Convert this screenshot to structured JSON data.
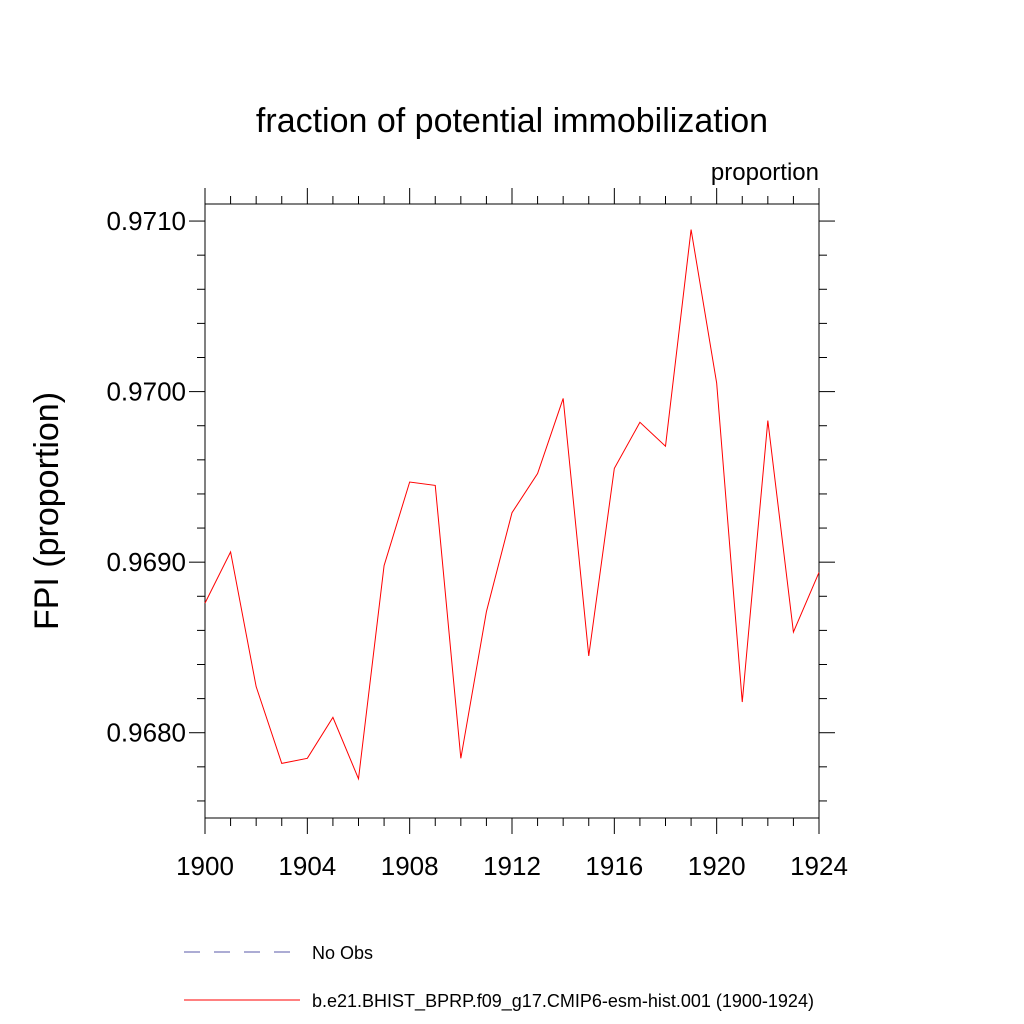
{
  "chart_data": {
    "type": "line",
    "title": "fraction of potential immobilization",
    "units_label": "proportion",
    "xlabel": "",
    "ylabel": "FPI  (proportion)",
    "xlim": [
      1900,
      1924
    ],
    "ylim": [
      0.9675,
      0.9711
    ],
    "x_ticks": [
      1900,
      1904,
      1908,
      1912,
      1916,
      1920,
      1924
    ],
    "y_ticks": [
      0.968,
      0.969,
      0.97,
      0.971
    ],
    "x_tick_labels": [
      "1900",
      "1904",
      "1908",
      "1912",
      "1916",
      "1920",
      "1924"
    ],
    "y_tick_labels": [
      "0.9680",
      "0.9690",
      "0.9700",
      "0.9710"
    ],
    "grid": false,
    "legend_position": "bottom",
    "x": [
      1900,
      1901,
      1902,
      1903,
      1904,
      1905,
      1906,
      1907,
      1908,
      1909,
      1910,
      1911,
      1912,
      1913,
      1914,
      1915,
      1916,
      1917,
      1918,
      1919,
      1920,
      1921,
      1922,
      1923,
      1924
    ],
    "series": [
      {
        "name": "b.e21.BHIST_BPRP.f09_g17.CMIP6-esm-hist.001 (1900-1924)",
        "color": "#ff0000",
        "style": "solid",
        "values": [
          0.96876,
          0.96906,
          0.96827,
          0.96782,
          0.96785,
          0.96809,
          0.96773,
          0.96898,
          0.96947,
          0.96945,
          0.96785,
          0.96871,
          0.96929,
          0.96952,
          0.96996,
          0.96845,
          0.96955,
          0.96982,
          0.96968,
          0.97095,
          0.97005,
          0.96818,
          0.96983,
          0.96859,
          0.96894
        ]
      }
    ],
    "legend": [
      {
        "label": "No Obs",
        "color": "#5a5aa8",
        "style": "dashed"
      },
      {
        "label": "b.e21.BHIST_BPRP.f09_g17.CMIP6-esm-hist.001 (1900-1924)",
        "color": "#ff0000",
        "style": "solid"
      }
    ]
  }
}
